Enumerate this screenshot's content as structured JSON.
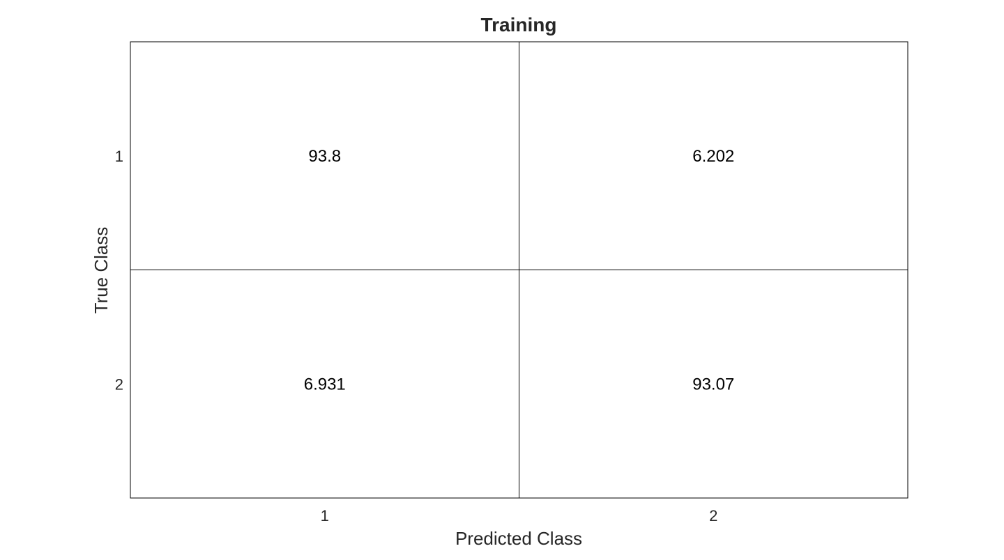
{
  "chart_data": {
    "type": "heatmap",
    "title": "Training",
    "xlabel": "Predicted Class",
    "ylabel": "True Class",
    "x_categories": [
      "1",
      "2"
    ],
    "y_categories": [
      "1",
      "2"
    ],
    "cells": [
      [
        "93.8",
        "6.202"
      ],
      [
        "6.931",
        "93.07"
      ]
    ],
    "values": [
      [
        93.8,
        6.202
      ],
      [
        6.931,
        93.07
      ]
    ],
    "grid": true,
    "colors": {
      "cell_fill": "#ffffff",
      "line": "#000000",
      "text": "#000000"
    }
  }
}
